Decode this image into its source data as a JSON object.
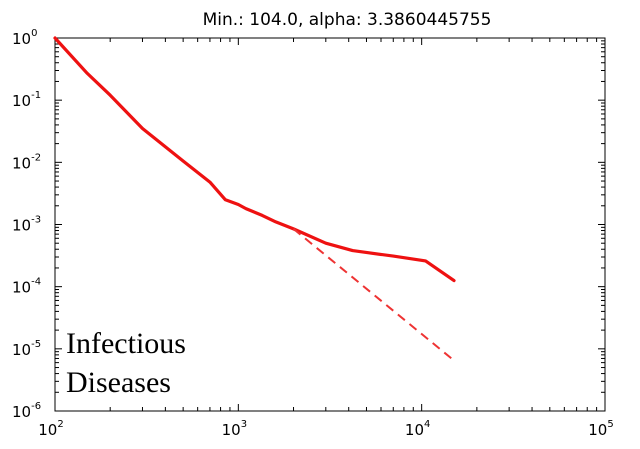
{
  "chart_data": {
    "type": "line",
    "title": "Min.: 104.0, alpha: 3.3860445755",
    "xlabel": "",
    "ylabel": "",
    "xscale": "log",
    "yscale": "log",
    "xlim": [
      100,
      100000
    ],
    "ylim": [
      1e-06,
      1
    ],
    "x_ticks": [
      {
        "base": "10",
        "exp": "2",
        "value": 100
      },
      {
        "base": "10",
        "exp": "3",
        "value": 1000
      },
      {
        "base": "10",
        "exp": "4",
        "value": 10000
      },
      {
        "base": "10",
        "exp": "5",
        "value": 100000
      }
    ],
    "y_ticks": [
      {
        "base": "10",
        "exp": "0",
        "value": 1
      },
      {
        "base": "10",
        "exp": "-1",
        "value": 0.1
      },
      {
        "base": "10",
        "exp": "-2",
        "value": 0.01
      },
      {
        "base": "10",
        "exp": "-3",
        "value": 0.001
      },
      {
        "base": "10",
        "exp": "-4",
        "value": 0.0001
      },
      {
        "base": "10",
        "exp": "-5",
        "value": 1e-05
      },
      {
        "base": "10",
        "exp": "-6",
        "value": 1e-06
      }
    ],
    "series": [
      {
        "style": "solid",
        "color": "#ee1111",
        "points": [
          [
            100,
            1.0
          ],
          [
            150,
            0.27
          ],
          [
            200,
            0.12
          ],
          [
            300,
            0.035
          ],
          [
            500,
            0.0105
          ],
          [
            700,
            0.0048
          ],
          [
            850,
            0.0025
          ],
          [
            1000,
            0.0021
          ],
          [
            1100,
            0.0018
          ],
          [
            1350,
            0.0014
          ],
          [
            1600,
            0.0011
          ],
          [
            2000,
            0.00085
          ],
          [
            3000,
            0.0005
          ],
          [
            4200,
            0.00038
          ],
          [
            7000,
            0.00031
          ],
          [
            10500,
            0.00026
          ],
          [
            15000,
            0.000125
          ]
        ]
      },
      {
        "style": "dashed",
        "color": "#ee3333",
        "points": [
          [
            2000,
            0.00085
          ],
          [
            15000,
            6.5e-06
          ]
        ]
      }
    ],
    "grid": false,
    "annotation": {
      "lines": [
        "Infectious",
        "Diseases"
      ],
      "position": "bottom-left"
    }
  }
}
